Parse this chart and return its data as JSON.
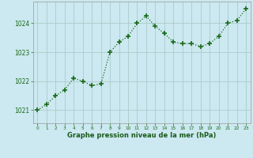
{
  "x": [
    0,
    1,
    2,
    3,
    4,
    5,
    6,
    7,
    8,
    9,
    10,
    11,
    12,
    13,
    14,
    15,
    16,
    17,
    18,
    19,
    20,
    21,
    22,
    23
  ],
  "y": [
    1021.0,
    1021.2,
    1021.5,
    1021.7,
    1022.1,
    1022.0,
    1021.85,
    1021.9,
    1023.0,
    1023.35,
    1023.55,
    1024.0,
    1024.25,
    1023.9,
    1023.65,
    1023.35,
    1023.3,
    1023.3,
    1023.2,
    1023.3,
    1023.55,
    1024.0,
    1024.1,
    1024.5
  ],
  "line_color": "#1a6b1a",
  "marker_color": "#1a6b1a",
  "bg_color": "#cce8f0",
  "grid_color": "#aacccc",
  "axis_label_color": "#1a5c1a",
  "tick_label_color": "#1a6b1a",
  "xlabel": "Graphe pression niveau de la mer (hPa)",
  "yticks": [
    1021,
    1022,
    1023,
    1024
  ],
  "ylim": [
    1020.55,
    1024.75
  ],
  "xlim": [
    -0.5,
    23.5
  ],
  "xticks": [
    0,
    1,
    2,
    3,
    4,
    5,
    6,
    7,
    8,
    9,
    10,
    11,
    12,
    13,
    14,
    15,
    16,
    17,
    18,
    19,
    20,
    21,
    22,
    23
  ]
}
